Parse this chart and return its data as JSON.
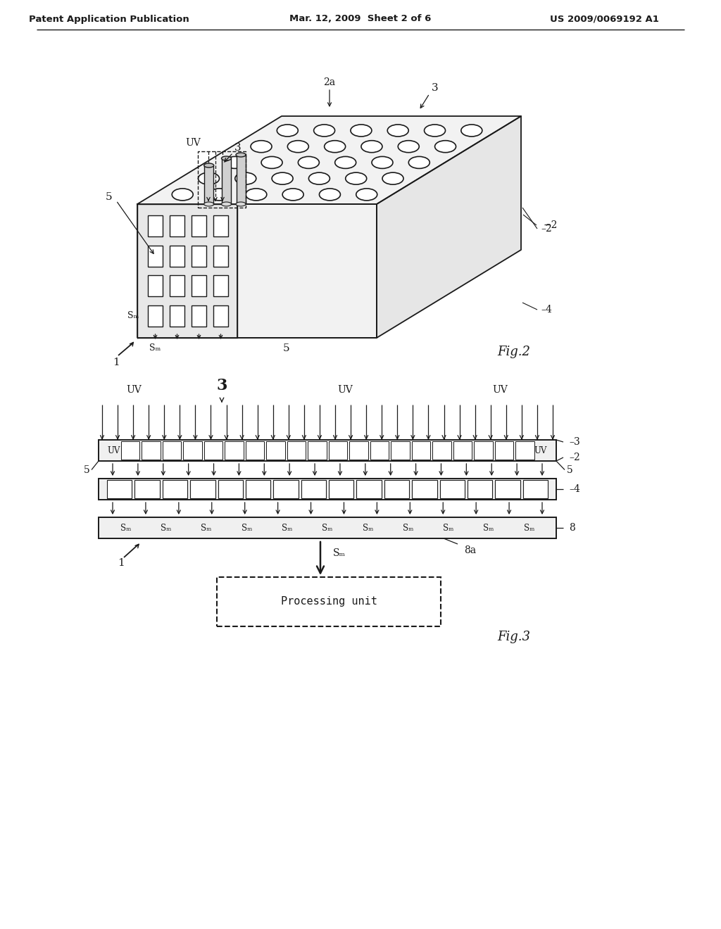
{
  "bg_color": "#ffffff",
  "line_color": "#1a1a1a",
  "header_left": "Patent Application Publication",
  "header_center": "Mar. 12, 2009  Sheet 2 of 6",
  "header_right": "US 2009/0069192 A1",
  "fig2_label": "Fig.2",
  "fig3_label": "Fig.3",
  "processing_unit_text": "Processing unit"
}
